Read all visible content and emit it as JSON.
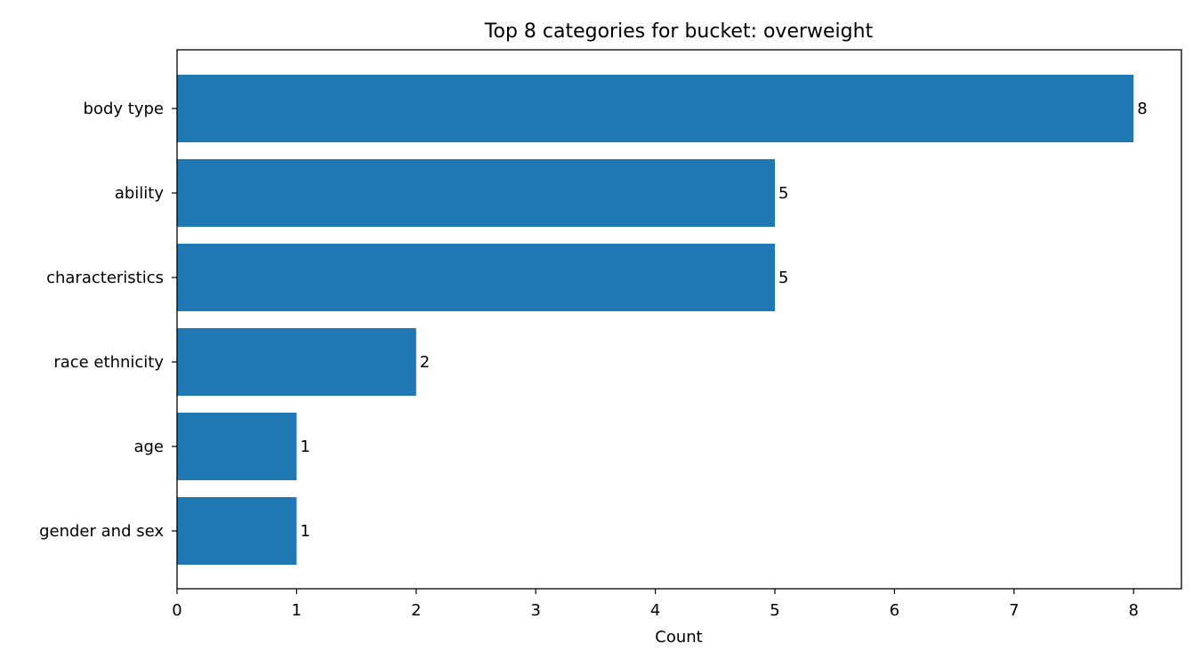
{
  "chart_data": {
    "type": "bar",
    "orientation": "horizontal",
    "title": "Top 8 categories for bucket: overweight",
    "xlabel": "Count",
    "ylabel": "",
    "categories": [
      "body type",
      "ability",
      "characteristics",
      "race ethnicity",
      "age",
      "gender and sex"
    ],
    "values": [
      8,
      5,
      5,
      2,
      1,
      1
    ],
    "data_labels": [
      "8",
      "5",
      "5",
      "2",
      "1",
      "1"
    ],
    "xlim": [
      0,
      8.4
    ],
    "xticks": [
      0,
      1,
      2,
      3,
      4,
      5,
      6,
      7,
      8
    ],
    "xtick_labels": [
      "0",
      "1",
      "2",
      "3",
      "4",
      "5",
      "6",
      "7",
      "8"
    ],
    "bar_color": "#1f77b4",
    "grid": false,
    "legend": "none"
  }
}
